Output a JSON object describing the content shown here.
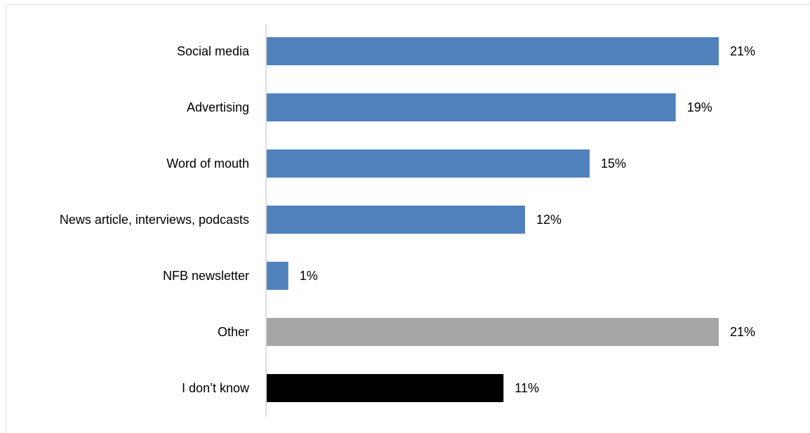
{
  "chart_data": {
    "type": "bar",
    "orientation": "horizontal",
    "title": "",
    "xlabel": "",
    "ylabel": "",
    "categories": [
      "Social media",
      "Advertising",
      "Word of mouth",
      "News article, interviews, podcasts",
      "NFB newsletter",
      "Other",
      "I don’t know"
    ],
    "values": [
      21,
      19,
      15,
      12,
      1,
      21,
      11
    ],
    "value_labels": [
      "21%",
      "19%",
      "15%",
      "12%",
      "1%",
      "21%",
      "11%"
    ],
    "colors": [
      "#4f81bd",
      "#4f81bd",
      "#4f81bd",
      "#4f81bd",
      "#4f81bd",
      "#a6a6a6",
      "#000000"
    ],
    "xlim": [
      0,
      21
    ],
    "grid": false,
    "legend": "none"
  }
}
